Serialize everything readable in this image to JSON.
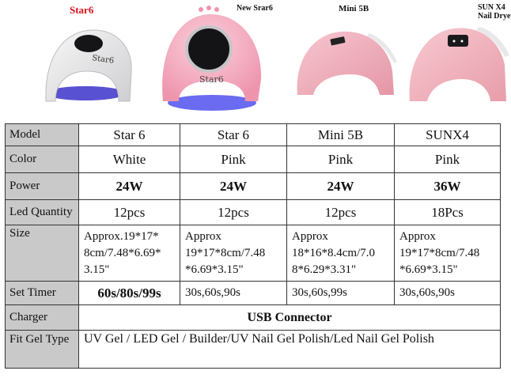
{
  "products": [
    {
      "title": "Star6",
      "color": "#e9e9ea",
      "title_color": "#d8101c",
      "screen_text": "Star6"
    },
    {
      "title": "New Srar6",
      "color": "#f5aec2",
      "title_color": "#111111",
      "screen_text": "Star6"
    },
    {
      "title": "Mini 5B",
      "color": "#f3b3bf",
      "title_color": "#111111",
      "screen_text": ""
    },
    {
      "title": "SUN X4",
      "subtitle": "Nail Dryer",
      "color": "#f1b3bd",
      "title_color": "#111111",
      "screen_text": ""
    }
  ],
  "table": {
    "labels": {
      "model": "Model",
      "color": "Color",
      "power": "Power",
      "led": "Led Quantity",
      "size": "Size",
      "timer": "Set Timer",
      "charger": "Charger",
      "fit": "Fit Gel Type"
    },
    "model": [
      "Star 6",
      "Star 6",
      "Mini 5B",
      "SUNX4"
    ],
    "color": [
      "White",
      "Pink",
      "Pink",
      "Pink"
    ],
    "power": [
      "24W",
      "24W",
      "24W",
      "36W"
    ],
    "led": [
      "12pcs",
      "12pcs",
      "12pcs",
      "18Pcs"
    ],
    "size": [
      [
        "Approx.19*17*",
        "8cm/7.48*6.69*",
        "3.15\""
      ],
      [
        "Approx",
        "19*17*8cm/7.48",
        "*6.69*3.15\""
      ],
      [
        "Approx",
        "18*16*8.4cm/7.0",
        "8*6.29*3.31\""
      ],
      [
        "Approx",
        "19*17*8cm/7.48",
        "*6.69*3.15\""
      ]
    ],
    "timer": [
      "60s/80s/99s",
      "30s,60s,90s",
      "30s,60s,99s",
      "30s,60s,90s"
    ],
    "charger": "USB Connector",
    "fit": "UV Gel / LED Gel / Builder/UV Nail Gel Polish/Led Nail Gel Polish"
  }
}
